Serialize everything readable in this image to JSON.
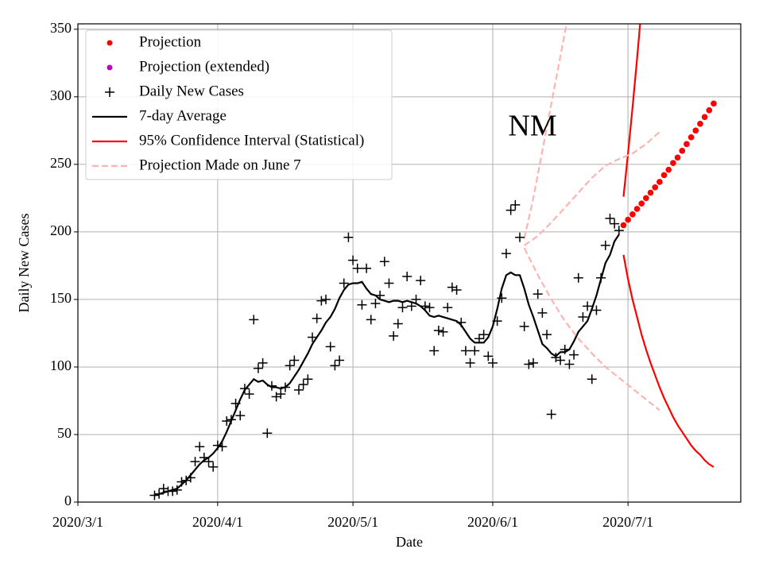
{
  "chart_data": {
    "type": "line",
    "annotations": [
      "NM"
    ],
    "xlabel": "Date",
    "ylabel": "Daily New Cases",
    "xlim": [
      0,
      147
    ],
    "xticks": [
      {
        "value": 0,
        "label": "2020/3/1"
      },
      {
        "value": 31,
        "label": "2020/4/1"
      },
      {
        "value": 61,
        "label": "2020/5/1"
      },
      {
        "value": 92,
        "label": "2020/6/1"
      },
      {
        "value": 122,
        "label": "2020/7/1"
      }
    ],
    "ylim": [
      0,
      354
    ],
    "yticks": [
      0,
      50,
      100,
      150,
      200,
      250,
      300,
      350
    ],
    "grid": true,
    "legend": "upper left",
    "series": [
      {
        "name": "Projection",
        "color": "#ff0000",
        "marker": "dot",
        "x": [
          121,
          122,
          123,
          124,
          125,
          126,
          127,
          128,
          129,
          130,
          131,
          132,
          133,
          134,
          135,
          136,
          137,
          138,
          139,
          140,
          141
        ],
        "values": [
          205,
          209,
          213,
          217,
          221,
          225,
          229,
          233,
          237,
          242,
          246,
          251,
          255,
          260,
          265,
          270,
          275,
          280,
          285,
          290,
          295
        ]
      },
      {
        "name": "Projection (extended)",
        "color": "#bf00bf",
        "marker": "dot",
        "x": [],
        "values": []
      },
      {
        "name": "Daily New Cases",
        "color": "#000000",
        "marker": "plus",
        "x": [
          17,
          18,
          19,
          20,
          21,
          22,
          23,
          24,
          25,
          26,
          27,
          28,
          29,
          30,
          31,
          32,
          33,
          34,
          35,
          36,
          37,
          38,
          39,
          40,
          41,
          42,
          43,
          44,
          45,
          46,
          47,
          48,
          49,
          50,
          51,
          52,
          53,
          54,
          55,
          56,
          57,
          58,
          59,
          60,
          61,
          62,
          63,
          64,
          65,
          66,
          67,
          68,
          69,
          70,
          71,
          72,
          73,
          74,
          75,
          76,
          77,
          78,
          79,
          80,
          81,
          82,
          83,
          84,
          85,
          86,
          87,
          88,
          89,
          90,
          91,
          92,
          93,
          94,
          95,
          96,
          97,
          98,
          99,
          100,
          101,
          102,
          103,
          104,
          105,
          106,
          107,
          108,
          109,
          110,
          111,
          112,
          113,
          114,
          115,
          116,
          117,
          118,
          119,
          120
        ],
        "values": [
          5,
          6,
          10,
          8,
          8,
          9,
          15,
          16,
          18,
          30,
          41,
          33,
          30,
          26,
          42,
          41,
          60,
          61,
          73,
          64,
          84,
          80,
          135,
          99,
          103,
          51,
          86,
          78,
          80,
          85,
          101,
          105,
          83,
          87,
          91,
          122,
          136,
          149,
          150,
          115,
          101,
          105,
          162,
          196,
          179,
          173,
          146,
          173,
          135,
          147,
          153,
          178,
          162,
          123,
          132,
          144,
          167,
          145,
          150,
          164,
          145,
          144,
          112,
          127,
          126,
          144,
          159,
          157,
          133,
          112,
          103,
          112,
          121,
          124,
          108,
          103,
          134,
          151,
          184,
          216,
          220,
          196,
          130,
          102,
          103,
          154,
          140,
          124,
          65,
          107,
          105,
          113,
          102,
          109,
          166,
          137,
          145,
          91,
          142,
          166,
          190,
          210,
          206,
          201
        ]
      },
      {
        "name": "7-day Average",
        "color": "#000000",
        "dash": false,
        "lines": [
          {
            "x": [
              17,
              18,
              19,
              20,
              21,
              22,
              23,
              24,
              25,
              26,
              27,
              28,
              29,
              30,
              31,
              32,
              33,
              34,
              35,
              36,
              37,
              38,
              39,
              40,
              41,
              42,
              43,
              44,
              45,
              46,
              47,
              48,
              49,
              50,
              51,
              52,
              53,
              54,
              55,
              56,
              57,
              58,
              59,
              60,
              61,
              62,
              63,
              64,
              65,
              66,
              67,
              68,
              69,
              70,
              71,
              72,
              73,
              74,
              75,
              76,
              77,
              78,
              79,
              80,
              81,
              82,
              83,
              84,
              85,
              86,
              87,
              88,
              89,
              90,
              91,
              92,
              93,
              94,
              95,
              96,
              97,
              98,
              99,
              100,
              101,
              102,
              103,
              104,
              105,
              106,
              107,
              108,
              109,
              110,
              111,
              112,
              113,
              114,
              115,
              116,
              117,
              118,
              119,
              120
            ],
            "values": [
              5,
              6,
              7,
              8,
              9,
              10,
              13,
              16,
              20,
              24,
              28,
              31,
              33,
              36,
              40,
              45,
              52,
              60,
              68,
              76,
              83,
              87,
              91,
              89,
              90,
              87,
              85,
              85,
              84,
              85,
              88,
              93,
              98,
              104,
              110,
              117,
              122,
              127,
              133,
              137,
              143,
              151,
              157,
              161,
              162,
              162,
              163,
              158,
              154,
              153,
              150,
              149,
              148,
              149,
              149,
              148,
              149,
              148,
              147,
              145,
              142,
              138,
              137,
              138,
              137,
              136,
              135,
              134,
              131,
              126,
              121,
              118,
              118,
              118,
              122,
              130,
              143,
              158,
              168,
              170,
              168,
              168,
              158,
              146,
              137,
              127,
              117,
              114,
              110,
              108,
              111,
              111,
              113,
              119,
              126,
              130,
              134,
              143,
              153,
              165,
              177,
              183,
              193,
              198
            ]
          }
        ]
      },
      {
        "name": "95% Confidence Interval (Statistical)",
        "color": "#ff0000",
        "dash": false,
        "lines": [
          {
            "x": [
              121,
              122,
              123,
              124,
              125
            ],
            "values": [
              226,
              258,
              292,
              328,
              366
            ]
          },
          {
            "x": [
              121,
              122,
              123,
              124,
              125,
              126,
              127,
              128,
              129,
              130,
              131,
              132,
              133,
              134,
              135,
              136,
              137,
              138,
              139,
              140,
              141
            ],
            "values": [
              183,
              165,
              150,
              137,
              124,
              113,
              103,
              94,
              85,
              77,
              70,
              63,
              57,
              52,
              47,
              42,
              38,
              35,
              31,
              28,
              26
            ]
          }
        ]
      },
      {
        "name": "Projection Made on June 7",
        "color": "#ffb3b3",
        "dash": true,
        "lines": [
          {
            "x": [
              99,
              101,
              103,
              105,
              107,
              109,
              111
            ],
            "values": [
              195,
              225,
              260,
              295,
              330,
              365,
              400
            ]
          },
          {
            "x": [
              99,
              102,
              105,
              108,
              111,
              114,
              117,
              120,
              123,
              126,
              129
            ],
            "values": [
              190,
              197,
              207,
              218,
              229,
              240,
              249,
              254,
              258,
              265,
              274
            ]
          },
          {
            "x": [
              99,
              102,
              105,
              108,
              111,
              114,
              117,
              120,
              123,
              126,
              129
            ],
            "values": [
              188,
              168,
              150,
              134,
              121,
              110,
              100,
              92,
              84,
              76,
              68
            ]
          }
        ]
      }
    ]
  }
}
